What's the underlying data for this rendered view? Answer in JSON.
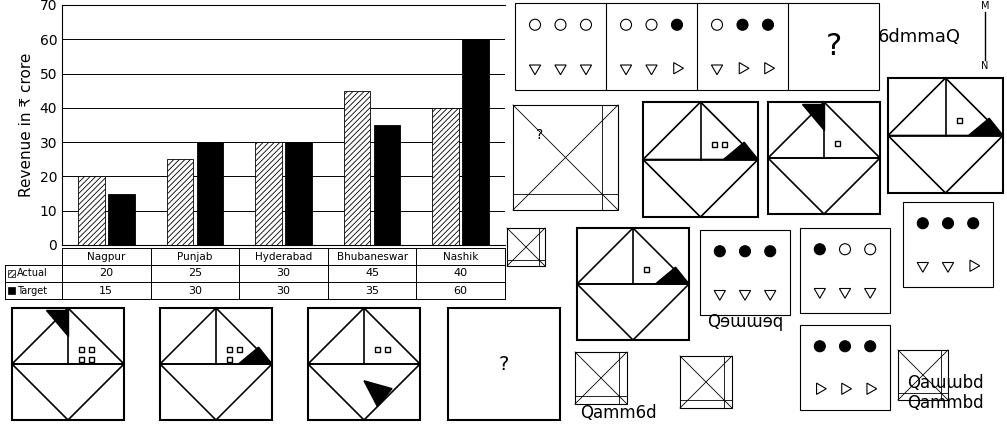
{
  "chart_data": {
    "type": "bar",
    "y_label": "Revenue in ₹ crore",
    "categories": [
      "Nagpur",
      "Punjab",
      "Hyderabad",
      "Bhubaneswar",
      "Nashik"
    ],
    "series": [
      {
        "name": "Actual",
        "color": "#ffffff",
        "values": [
          20,
          25,
          30,
          45,
          40
        ]
      },
      {
        "name": "Target",
        "color": "#000000",
        "values": [
          15,
          30,
          30,
          35,
          60
        ]
      }
    ],
    "ylim": [
      0,
      70
    ],
    "yticks": [
      0,
      10,
      20,
      30,
      40,
      50,
      60,
      70
    ],
    "grid": true
  },
  "puzzles": {
    "question_mark": "?",
    "mirror": {
      "word": "6dmmaQ",
      "top": "M",
      "bottom": "N"
    },
    "options": [
      "Qɘɯɯɘq",
      "Qaɯɯbd",
      "Qammbd",
      "Qamm6d"
    ]
  }
}
